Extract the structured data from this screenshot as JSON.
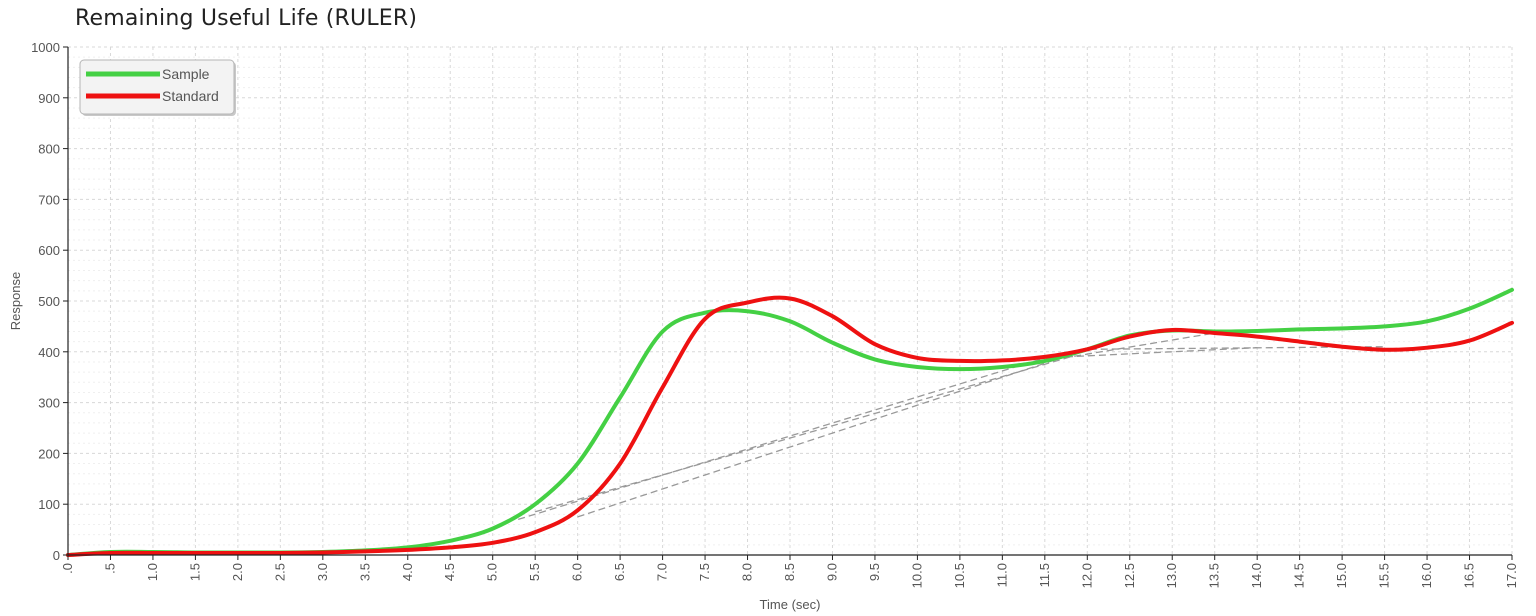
{
  "chart_data": {
    "type": "line",
    "title": "Remaining Useful Life (RULER)",
    "xlabel": "Time (sec)",
    "ylabel": "Response",
    "xlim": [
      0,
      17
    ],
    "ylim": [
      0,
      1000
    ],
    "grid": true,
    "legend": "top-left",
    "x_tick_labels": [
      ".0",
      ".5",
      "1.0",
      "1.5",
      "2.0",
      "2.5",
      "3.0",
      "3.5",
      "4.0",
      "4.5",
      "5.0",
      "5.5",
      "6.0",
      "6.5",
      "7.0",
      "7.5",
      "8.0",
      "8.5",
      "9.0",
      "9.5",
      "10.0",
      "10.5",
      "11.0",
      "11.5",
      "12.0",
      "12.5",
      "13.0",
      "13.5",
      "14.0",
      "14.5",
      "15.0",
      "15.5",
      "16.0",
      "16.5",
      "17.0"
    ],
    "y_tick_labels": [
      "0",
      "100",
      "200",
      "300",
      "400",
      "500",
      "600",
      "700",
      "800",
      "900",
      "1000"
    ],
    "series": [
      {
        "name": "Sample",
        "color": "#44d044",
        "points": [
          [
            0.0,
            0
          ],
          [
            0.5,
            6
          ],
          [
            1.0,
            6
          ],
          [
            1.5,
            5
          ],
          [
            2.0,
            5
          ],
          [
            2.5,
            5
          ],
          [
            3.0,
            6
          ],
          [
            3.5,
            9
          ],
          [
            4.0,
            15
          ],
          [
            4.5,
            28
          ],
          [
            5.0,
            52
          ],
          [
            5.5,
            100
          ],
          [
            6.0,
            180
          ],
          [
            6.5,
            310
          ],
          [
            7.0,
            440
          ],
          [
            7.5,
            477
          ],
          [
            8.0,
            480
          ],
          [
            8.5,
            460
          ],
          [
            9.0,
            418
          ],
          [
            9.5,
            385
          ],
          [
            10.0,
            370
          ],
          [
            10.5,
            366
          ],
          [
            11.0,
            370
          ],
          [
            11.5,
            382
          ],
          [
            12.0,
            405
          ],
          [
            12.5,
            432
          ],
          [
            13.0,
            442
          ],
          [
            13.5,
            440
          ],
          [
            14.0,
            441
          ],
          [
            14.5,
            444
          ],
          [
            15.0,
            446
          ],
          [
            15.5,
            450
          ],
          [
            16.0,
            460
          ],
          [
            16.5,
            485
          ],
          [
            17.0,
            522
          ]
        ]
      },
      {
        "name": "Standard",
        "color": "#ee1111",
        "points": [
          [
            0.0,
            0
          ],
          [
            0.5,
            4
          ],
          [
            1.0,
            4
          ],
          [
            1.5,
            4
          ],
          [
            2.0,
            4
          ],
          [
            2.5,
            4
          ],
          [
            3.0,
            5
          ],
          [
            3.5,
            7
          ],
          [
            4.0,
            10
          ],
          [
            4.5,
            15
          ],
          [
            5.0,
            24
          ],
          [
            5.5,
            45
          ],
          [
            6.0,
            88
          ],
          [
            6.5,
            180
          ],
          [
            7.0,
            330
          ],
          [
            7.5,
            465
          ],
          [
            8.0,
            497
          ],
          [
            8.5,
            505
          ],
          [
            9.0,
            470
          ],
          [
            9.5,
            415
          ],
          [
            10.0,
            388
          ],
          [
            10.5,
            382
          ],
          [
            11.0,
            383
          ],
          [
            11.5,
            390
          ],
          [
            12.0,
            405
          ],
          [
            12.5,
            430
          ],
          [
            13.0,
            443
          ],
          [
            13.5,
            437
          ],
          [
            14.0,
            430
          ],
          [
            14.5,
            420
          ],
          [
            15.0,
            410
          ],
          [
            15.5,
            404
          ],
          [
            16.0,
            408
          ],
          [
            16.5,
            422
          ],
          [
            17.0,
            457
          ]
        ]
      }
    ],
    "baselines": [
      {
        "color": "#999999",
        "points": [
          [
            5.5,
            85
          ],
          [
            11.8,
            390
          ],
          [
            13.5,
            437
          ]
        ]
      },
      {
        "color": "#999999",
        "points": [
          [
            6.0,
            75
          ],
          [
            12.0,
            405
          ],
          [
            15.5,
            410
          ]
        ]
      },
      {
        "color": "#999999",
        "points": [
          [
            5.3,
            70
          ],
          [
            11.5,
            388
          ],
          [
            14.0,
            408
          ]
        ]
      }
    ]
  }
}
